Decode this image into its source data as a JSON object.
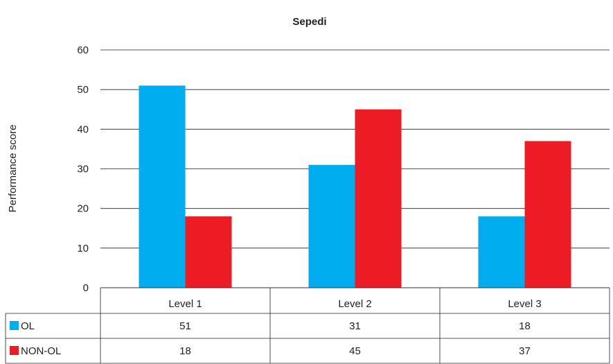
{
  "chart_data": {
    "type": "bar",
    "title": "Sepedi",
    "xlabel": "",
    "ylabel": "Performance score",
    "ylim": [
      0,
      60
    ],
    "yticks": [
      0,
      10,
      20,
      30,
      40,
      50,
      60
    ],
    "grid": true,
    "legend": "data-table",
    "categories": [
      "Level 1",
      "Level 2",
      "Level 3"
    ],
    "series": [
      {
        "name": "OL",
        "values": [
          51,
          31,
          18
        ],
        "display": [
          "51",
          "31",
          "18"
        ],
        "color": "#00aeef"
      },
      {
        "name": "NON-OL",
        "values": [
          18,
          45,
          37
        ],
        "display": [
          "18",
          "45",
          "37"
        ],
        "color": "#ed1c24"
      }
    ]
  }
}
